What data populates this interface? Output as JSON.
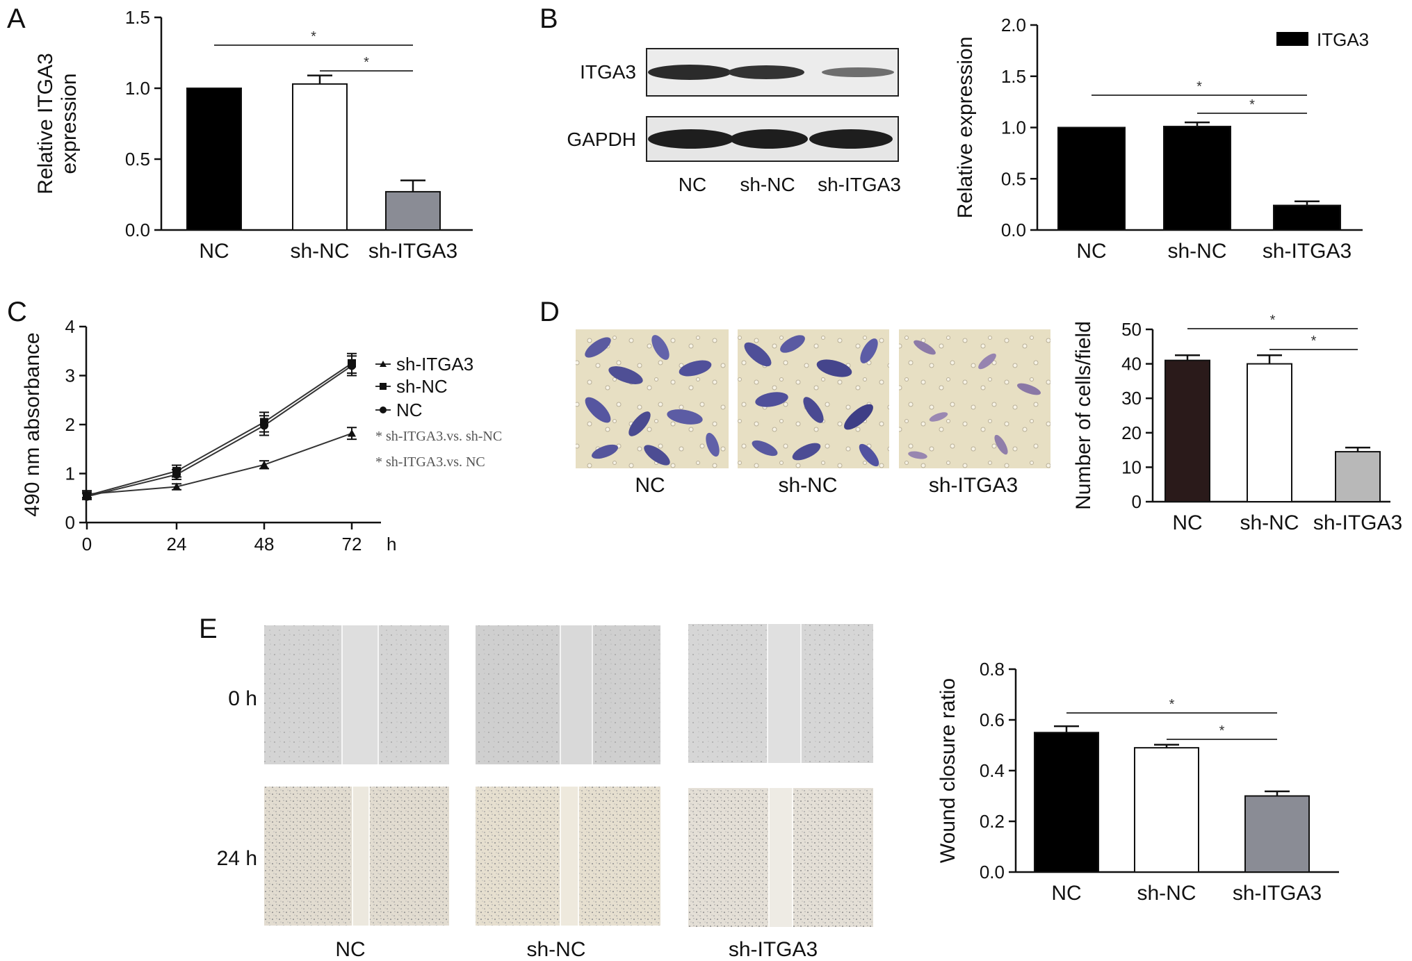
{
  "panels": {
    "A": "A",
    "B": "B",
    "C": "C",
    "D": "D",
    "E": "E"
  },
  "colors": {
    "black": "#000000",
    "white": "#ffffff",
    "gray": "#8a8c95",
    "darkbrown": "#2a1a1a",
    "lightgray": "#b8b8b8"
  },
  "blot": {
    "bands": [
      "ITGA3",
      "GAPDH"
    ],
    "lanes": [
      "NC",
      "sh-NC",
      "sh-ITGA3"
    ]
  },
  "transwell": {
    "labels": [
      "NC",
      "sh-NC",
      "sh-ITGA3"
    ]
  },
  "wound": {
    "rows": [
      "0 h",
      "24 h"
    ],
    "cols": [
      "NC",
      "sh-NC",
      "sh-ITGA3"
    ]
  },
  "chart_data": [
    {
      "id": "A",
      "type": "bar",
      "categories": [
        "NC",
        "sh-NC",
        "sh-ITGA3"
      ],
      "values": [
        1.0,
        1.03,
        0.27
      ],
      "errors": [
        0,
        0.06,
        0.08
      ],
      "fills": [
        "#000000",
        "#ffffff",
        "#8a8c95"
      ],
      "ylabel": [
        "Relative ITGA3",
        "expression"
      ],
      "ylim": [
        0,
        1.5
      ],
      "yticks": [
        "0.0",
        "0.5",
        "1.0",
        "1.5"
      ],
      "significance": [
        {
          "from": 0,
          "to": 2,
          "label": "*"
        },
        {
          "from": 1,
          "to": 2,
          "label": "*"
        }
      ]
    },
    {
      "id": "B",
      "type": "bar",
      "categories": [
        "NC",
        "sh-NC",
        "sh-ITGA3"
      ],
      "values": [
        1.0,
        1.01,
        0.24
      ],
      "errors": [
        0,
        0.04,
        0.04
      ],
      "fills": [
        "#000000",
        "#000000",
        "#000000"
      ],
      "ylabel": [
        "Relative expression"
      ],
      "ylim": [
        0,
        2.0
      ],
      "yticks": [
        "0.0",
        "0.5",
        "1.0",
        "1.5",
        "2.0"
      ],
      "legend": "ITGA3",
      "significance": [
        {
          "from": 0,
          "to": 2,
          "label": "*"
        },
        {
          "from": 1,
          "to": 2,
          "label": "*"
        }
      ]
    },
    {
      "id": "C",
      "type": "line",
      "x": [
        0,
        24,
        48,
        72
      ],
      "xticks": [
        "0",
        "24",
        "48",
        "72"
      ],
      "xunit": "h",
      "ylabel": "490 nm absorbance",
      "ylim": [
        0,
        4
      ],
      "yticks": [
        "0",
        "1",
        "2",
        "3",
        "4"
      ],
      "series": [
        {
          "name": "sh-ITGA3",
          "marker": "triangle",
          "values": [
            0.58,
            0.73,
            1.18,
            1.82
          ],
          "errors": [
            0.07,
            0.06,
            0.08,
            0.12
          ]
        },
        {
          "name": "sh-NC",
          "marker": "square",
          "values": [
            0.55,
            1.05,
            2.05,
            3.25
          ],
          "errors": [
            0.07,
            0.12,
            0.2,
            0.2
          ]
        },
        {
          "name": "NC",
          "marker": "circle",
          "values": [
            0.53,
            0.98,
            1.98,
            3.2
          ],
          "errors": [
            0.06,
            0.1,
            0.2,
            0.2
          ]
        }
      ],
      "notes": [
        "* sh-ITGA3.vs. sh-NC",
        "* sh-ITGA3.vs. NC"
      ]
    },
    {
      "id": "D",
      "type": "bar",
      "categories": [
        "NC",
        "sh-NC",
        "sh-ITGA3"
      ],
      "values": [
        41,
        40,
        14.5
      ],
      "errors": [
        1.5,
        2.5,
        1.2
      ],
      "fills": [
        "#2a1a1a",
        "#ffffff",
        "#b8b8b8"
      ],
      "ylabel": [
        "Number of cells/field"
      ],
      "ylim": [
        0,
        50
      ],
      "yticks": [
        "0",
        "10",
        "20",
        "30",
        "40",
        "50"
      ],
      "significance": [
        {
          "from": 0,
          "to": 2,
          "label": "*"
        },
        {
          "from": 1,
          "to": 2,
          "label": "*"
        }
      ]
    },
    {
      "id": "E",
      "type": "bar",
      "categories": [
        "NC",
        "sh-NC",
        "sh-ITGA3"
      ],
      "values": [
        0.55,
        0.49,
        0.3
      ],
      "errors": [
        0.025,
        0.012,
        0.018
      ],
      "fills": [
        "#000000",
        "#ffffff",
        "#8a8c95"
      ],
      "ylabel": [
        "Wound closure ratio"
      ],
      "ylim": [
        0,
        0.8
      ],
      "yticks": [
        "0.0",
        "0.2",
        "0.4",
        "0.6",
        "0.8"
      ],
      "significance": [
        {
          "from": 0,
          "to": 2,
          "label": "*"
        },
        {
          "from": 1,
          "to": 2,
          "label": "*"
        }
      ]
    }
  ]
}
